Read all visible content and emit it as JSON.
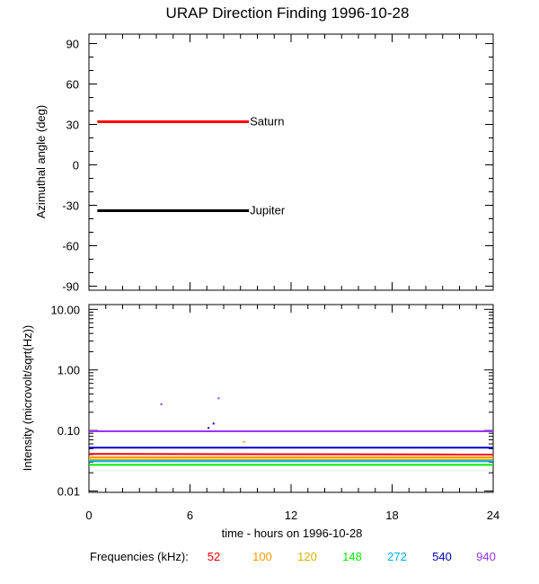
{
  "title": "URAP Direction Finding  1996-10-28",
  "colors": {
    "saturn": "#ff0000",
    "jupiter": "#000000",
    "f52": "#ff0000",
    "f100": "#ff9900",
    "f120": "#d4b000",
    "f148": "#00ee00",
    "f272": "#00aaff",
    "f540": "#0000cc",
    "f940": "#9933ff"
  },
  "chart_data": [
    {
      "type": "line",
      "title": "URAP Direction Finding  1996-10-28",
      "xlabel": "",
      "ylabel": "Azimuthal angle (deg)",
      "xlim": [
        0,
        24
      ],
      "ylim": [
        -93,
        97
      ],
      "yticks": [
        90,
        60,
        30,
        0,
        -30,
        -60,
        -90
      ],
      "ytick_labels": [
        "90",
        "60",
        "30",
        "0",
        "-30",
        "-60",
        "-90"
      ],
      "series": [
        {
          "name": "Saturn",
          "x": [
            0.5,
            9.5
          ],
          "y": [
            32,
            32
          ],
          "color": "#ff0000"
        },
        {
          "name": "Jupiter",
          "x": [
            0.5,
            9.5
          ],
          "y": [
            -34,
            -34
          ],
          "color": "#000000"
        }
      ]
    },
    {
      "type": "line",
      "xlabel": "time - hours on 1996-10-28",
      "ylabel": "Intensity (microvolt/sqrt(Hz))",
      "xlim": [
        0,
        24
      ],
      "ylim": [
        0.0095,
        12
      ],
      "yscale": "log",
      "yticks": [
        10.0,
        1.0,
        0.1,
        0.01
      ],
      "ytick_labels": [
        "10.00",
        "1.00",
        "0.10",
        "0.01"
      ],
      "xticks": [
        0,
        6,
        12,
        18,
        24
      ],
      "xtick_labels": [
        "0",
        "6",
        "12",
        "18",
        "24"
      ],
      "series": [
        {
          "name": "940",
          "x": [
            0,
            24
          ],
          "y": [
            0.097,
            0.097
          ],
          "color": "#9933ff"
        },
        {
          "name": "540",
          "x": [
            0,
            24
          ],
          "y": [
            0.052,
            0.052
          ],
          "color": "#0000cc"
        },
        {
          "name": "52",
          "x": [
            0,
            24
          ],
          "y": [
            0.041,
            0.04
          ],
          "color": "#ff0000"
        },
        {
          "name": "100",
          "x": [
            0,
            24
          ],
          "y": [
            0.036,
            0.036
          ],
          "color": "#ff9900"
        },
        {
          "name": "120",
          "x": [
            0,
            24
          ],
          "y": [
            0.033,
            0.033
          ],
          "color": "#d4b000"
        },
        {
          "name": "272",
          "x": [
            0,
            24
          ],
          "y": [
            0.031,
            0.031
          ],
          "color": "#00aaff"
        },
        {
          "name": "148",
          "x": [
            0,
            24
          ],
          "y": [
            0.027,
            0.027
          ],
          "color": "#00ee00"
        }
      ],
      "outliers": [
        {
          "x": 4.3,
          "y": 0.27,
          "color": "#9933ff"
        },
        {
          "x": 7.1,
          "y": 0.11,
          "color": "#0000cc"
        },
        {
          "x": 7.4,
          "y": 0.13,
          "color": "#0000cc"
        },
        {
          "x": 7.7,
          "y": 0.34,
          "color": "#9933ff"
        },
        {
          "x": 9.2,
          "y": 0.065,
          "color": "#ff9900"
        }
      ]
    }
  ],
  "legend": {
    "label": "Frequencies (kHz):",
    "items": [
      {
        "text": "52",
        "color": "#ff0000"
      },
      {
        "text": "100",
        "color": "#ff9900"
      },
      {
        "text": "120",
        "color": "#d4b000"
      },
      {
        "text": "148",
        "color": "#00ee00"
      },
      {
        "text": "272",
        "color": "#00aaff"
      },
      {
        "text": "540",
        "color": "#0000cc"
      },
      {
        "text": "940",
        "color": "#9933ff"
      }
    ]
  }
}
